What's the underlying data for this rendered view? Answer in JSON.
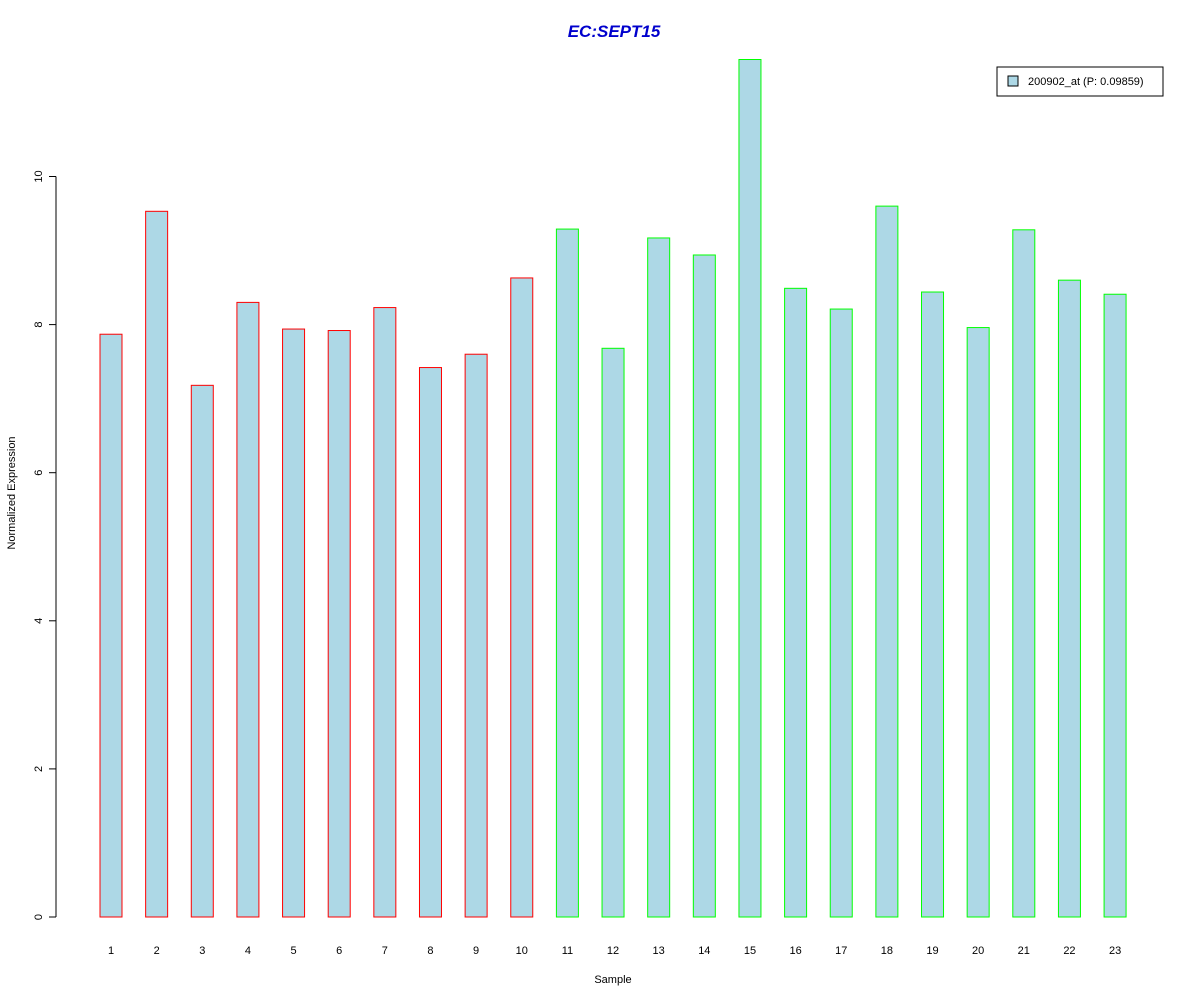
{
  "chart_data": {
    "type": "bar",
    "title": "EC:SEPT15",
    "xlabel": "Sample",
    "ylabel": "Normalized Expression",
    "categories": [
      "1",
      "2",
      "3",
      "4",
      "5",
      "6",
      "7",
      "8",
      "9",
      "10",
      "11",
      "12",
      "13",
      "14",
      "15",
      "16",
      "17",
      "18",
      "19",
      "20",
      "21",
      "22",
      "23"
    ],
    "series": [
      {
        "name": "200902_at (P: 0.09859)",
        "values": [
          7.87,
          9.53,
          7.18,
          8.3,
          7.94,
          7.92,
          8.23,
          7.42,
          7.6,
          8.63,
          9.29,
          7.68,
          9.17,
          8.94,
          11.58,
          8.49,
          8.21,
          9.6,
          8.44,
          7.96,
          9.28,
          8.6,
          8.41
        ]
      }
    ],
    "bar_outline_colors": [
      "#ff0000",
      "#ff0000",
      "#ff0000",
      "#ff0000",
      "#ff0000",
      "#ff0000",
      "#ff0000",
      "#ff0000",
      "#ff0000",
      "#ff0000",
      "#00ff00",
      "#00ff00",
      "#00ff00",
      "#00ff00",
      "#00ff00",
      "#00ff00",
      "#00ff00",
      "#00ff00",
      "#00ff00",
      "#00ff00",
      "#00ff00",
      "#00ff00",
      "#00ff00"
    ],
    "fill_color": "#add8e6",
    "title_color": "#0000cd",
    "yticks": [
      "0",
      "2",
      "4",
      "6",
      "8",
      "10"
    ],
    "ylim": [
      0,
      11.6
    ],
    "legend_position": "top-right",
    "grid": false
  }
}
